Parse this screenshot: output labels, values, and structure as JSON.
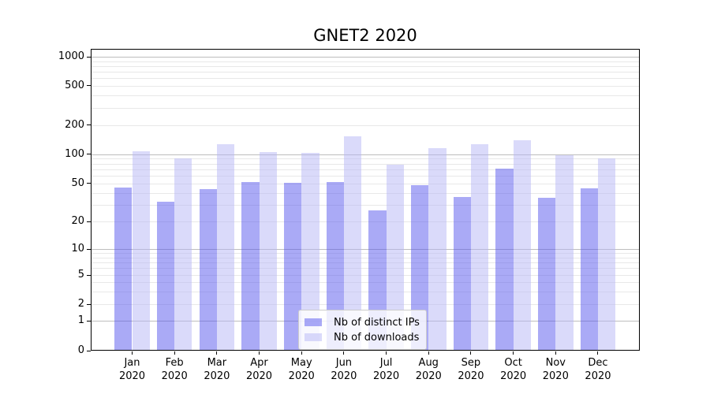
{
  "chart_data": {
    "type": "bar",
    "title": "GNET2 2020",
    "categories": [
      "Jan 2020",
      "Feb 2020",
      "Mar 2020",
      "Apr 2020",
      "May 2020",
      "Jun 2020",
      "Jul 2020",
      "Aug 2020",
      "Sep 2020",
      "Oct 2020",
      "Nov 2020",
      "Dec 2020"
    ],
    "series": [
      {
        "name": "Nb of distinct IPs",
        "color": "rgba(85,85,238,0.5)",
        "values": [
          45,
          32,
          43,
          51,
          50,
          51,
          26,
          47,
          36,
          70,
          35,
          44
        ]
      },
      {
        "name": "Nb of downloads",
        "color": "rgba(181,181,245,0.5)",
        "values": [
          107,
          90,
          126,
          104,
          102,
          150,
          77,
          115,
          125,
          137,
          96,
          89
        ]
      }
    ],
    "yscale": "symlog",
    "yticks": [
      0,
      1,
      2,
      5,
      10,
      20,
      50,
      100,
      200,
      500,
      1000
    ],
    "ylim": [
      0,
      1000
    ],
    "xlabel": "",
    "ylabel": "",
    "grid": true,
    "legend_position": "lower center"
  },
  "colors": {
    "major_grid": "#bdbdbd",
    "minor_grid": "#e8e8e8",
    "axis": "#000000",
    "background": "#ffffff",
    "legend_border": "#cccccc"
  }
}
